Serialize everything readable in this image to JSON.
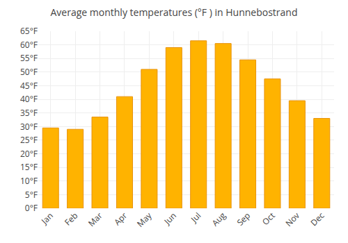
{
  "chart_data": {
    "type": "bar",
    "title": "Average monthly temperatures (°F ) in Hunnebostrand",
    "categories": [
      "Jan",
      "Feb",
      "Mar",
      "Apr",
      "May",
      "Jun",
      "Jul",
      "Aug",
      "Sep",
      "Oct",
      "Nov",
      "Dec"
    ],
    "values": [
      29.5,
      29.0,
      33.5,
      41.0,
      51.0,
      59.0,
      61.5,
      60.5,
      54.5,
      47.5,
      39.5,
      33.0
    ],
    "color": "#FFB300",
    "ylim": [
      0,
      65
    ],
    "yticks": [
      {
        "value": 0,
        "label": "0°F"
      },
      {
        "value": 5,
        "label": "5°F"
      },
      {
        "value": 10,
        "label": "10°F"
      },
      {
        "value": 15,
        "label": "15°F"
      },
      {
        "value": 20,
        "label": "20°F"
      },
      {
        "value": 25,
        "label": "25°F"
      },
      {
        "value": 30,
        "label": "30°F"
      },
      {
        "value": 35,
        "label": "35°F"
      },
      {
        "value": 40,
        "label": "40°F"
      },
      {
        "value": 45,
        "label": "45°F"
      },
      {
        "value": 50,
        "label": "50°F"
      },
      {
        "value": 55,
        "label": "55°F"
      },
      {
        "value": 60,
        "label": "60°F"
      },
      {
        "value": 65,
        "label": "65°F"
      }
    ],
    "grid": true
  }
}
